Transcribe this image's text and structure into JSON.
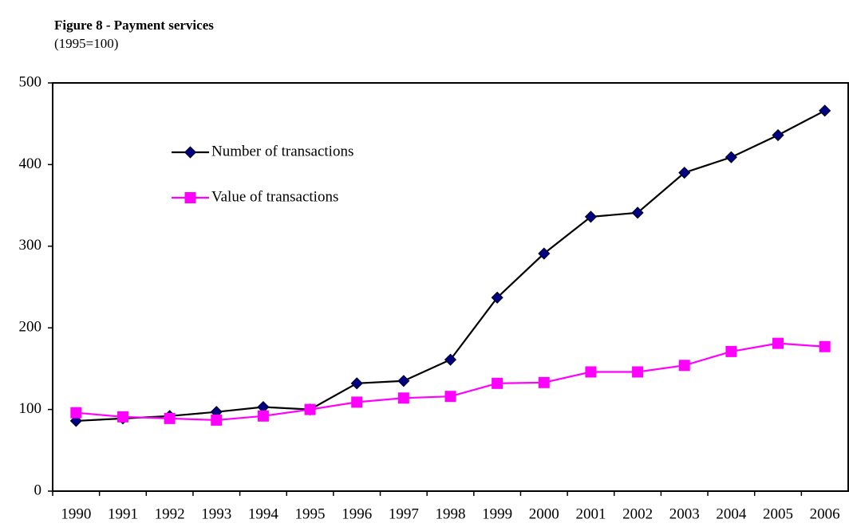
{
  "chart_data": {
    "type": "line",
    "title": "Figure 8 - Payment services",
    "subtitle": "(1995=100)",
    "categories": [
      "1990",
      "1991",
      "1992",
      "1993",
      "1994",
      "1995",
      "1996",
      "1997",
      "1998",
      "1999",
      "2000",
      "2001",
      "2002",
      "2003",
      "2004",
      "2005",
      "2006"
    ],
    "series": [
      {
        "name": "Number of transactions",
        "color": "#000080",
        "line_color": "#000000",
        "marker": "diamond",
        "values": [
          86,
          89,
          92,
          97,
          103,
          100,
          132,
          135,
          161,
          237,
          291,
          336,
          341,
          390,
          409,
          436,
          466
        ]
      },
      {
        "name": "Value of transactions",
        "color": "#ff00ff",
        "line_color": "#ff00ff",
        "marker": "square",
        "values": [
          96,
          91,
          89,
          87,
          92,
          100,
          109,
          114,
          116,
          132,
          133,
          146,
          146,
          154,
          171,
          181,
          177
        ]
      }
    ],
    "ylim": [
      0,
      500
    ],
    "yticks": [
      0,
      100,
      200,
      300,
      400,
      500
    ],
    "grid": false,
    "legend": "upper left"
  }
}
